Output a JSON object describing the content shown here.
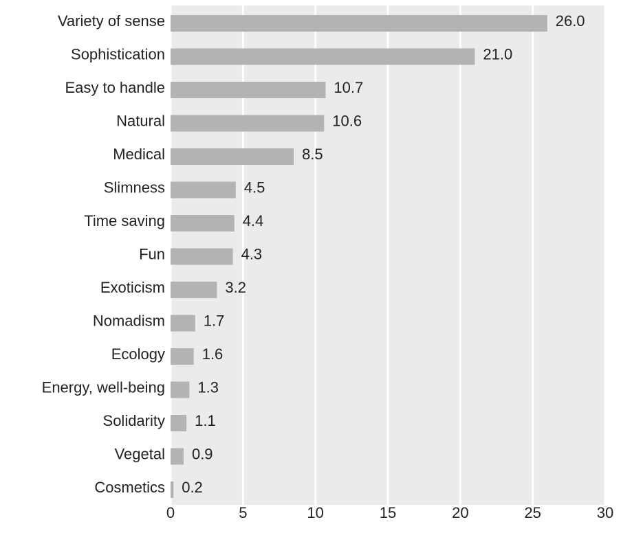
{
  "chart_data": {
    "type": "bar",
    "orientation": "horizontal",
    "categories": [
      "Variety of sense",
      "Sophistication",
      "Easy to handle",
      "Natural",
      "Medical",
      "Slimness",
      "Time saving",
      "Fun",
      "Exoticism",
      "Nomadism",
      "Ecology",
      "Energy, well-being",
      "Solidarity",
      "Vegetal",
      "Cosmetics"
    ],
    "values": [
      26.0,
      21.0,
      10.7,
      10.6,
      8.5,
      4.5,
      4.4,
      4.3,
      3.2,
      1.7,
      1.6,
      1.3,
      1.1,
      0.9,
      0.2
    ],
    "value_labels": [
      "26.0",
      "21.0",
      "10.7",
      "10.6",
      "8.5",
      "4.5",
      "4.4",
      "4.3",
      "3.2",
      "1.7",
      "1.6",
      "1.3",
      "1.1",
      "0.9",
      "0.2"
    ],
    "color": "#b3b3b3",
    "xlim": [
      0,
      30
    ],
    "xticks": [
      0,
      5,
      10,
      15,
      20,
      25,
      30
    ],
    "grid": true
  }
}
